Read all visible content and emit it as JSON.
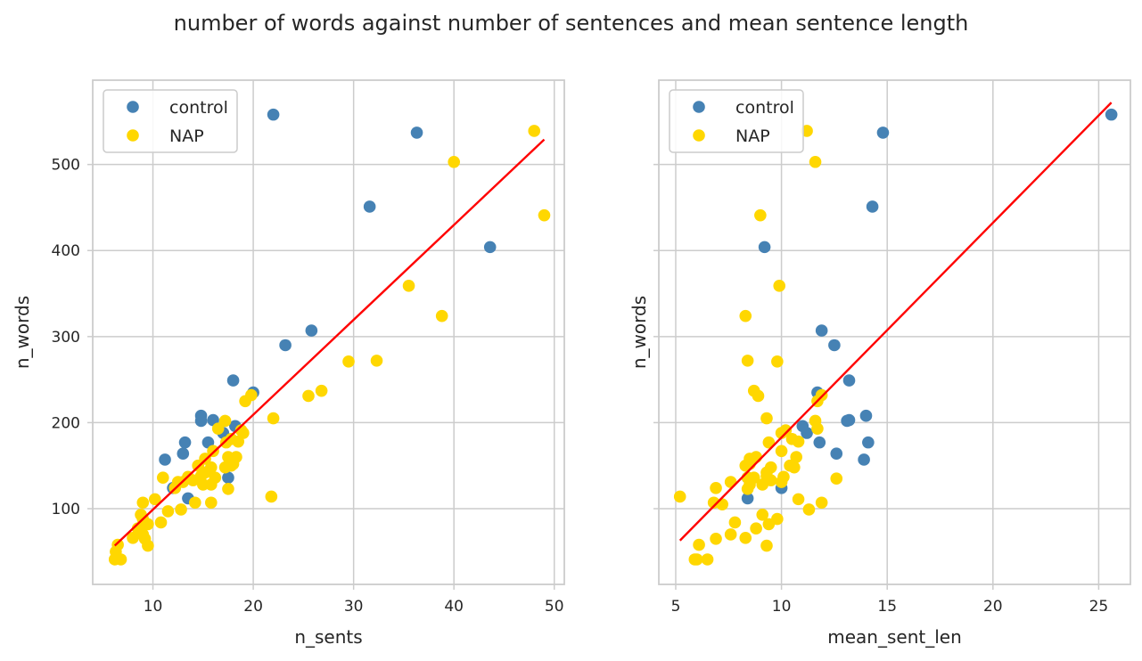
{
  "figure": {
    "title": "number of words against number of sentences and mean sentence length"
  },
  "colors": {
    "control": "#4682b4",
    "NAP": "#ffd700",
    "fit": "#ff0000",
    "grid": "#cccccc",
    "axes": "#cccccc"
  },
  "chart_data": [
    {
      "type": "scatter",
      "title": "",
      "xlabel": "n_sents",
      "ylabel": "n_words",
      "xlim": [
        4,
        51
      ],
      "ylim": [
        12,
        598
      ],
      "xticks": [
        10,
        20,
        30,
        40,
        50
      ],
      "yticks": [
        100,
        200,
        300,
        400,
        500
      ],
      "grid": true,
      "legend": "top-left",
      "series": [
        {
          "name": "control",
          "points": [
            [
              22,
              558
            ],
            [
              36.3,
              537
            ],
            [
              31.6,
              451
            ],
            [
              43.6,
              404
            ],
            [
              25.8,
              307
            ],
            [
              23.2,
              290
            ],
            [
              18,
              249
            ],
            [
              20,
              235
            ],
            [
              14.8,
              208
            ],
            [
              14.8,
              202
            ],
            [
              16,
              203
            ],
            [
              13.2,
              177
            ],
            [
              15.5,
              177
            ],
            [
              17,
              188
            ],
            [
              18.2,
              196
            ],
            [
              13,
              164
            ],
            [
              11.2,
              157
            ],
            [
              12,
              124
            ],
            [
              13.5,
              112
            ],
            [
              17.5,
              136
            ]
          ]
        },
        {
          "name": "NAP",
          "points": [
            [
              48,
              539
            ],
            [
              40,
              503
            ],
            [
              49,
              441
            ],
            [
              35.5,
              359
            ],
            [
              38.8,
              324
            ],
            [
              29.5,
              271
            ],
            [
              32.3,
              272
            ],
            [
              26.8,
              237
            ],
            [
              25.5,
              231
            ],
            [
              19.2,
              225
            ],
            [
              19.8,
              232
            ],
            [
              22,
              205
            ],
            [
              21.8,
              114
            ],
            [
              17.2,
              202
            ],
            [
              16.5,
              193
            ],
            [
              18.8,
              191
            ],
            [
              19,
              188
            ],
            [
              17.8,
              181
            ],
            [
              18.5,
              178
            ],
            [
              17.3,
              177
            ],
            [
              16,
              167
            ],
            [
              15.2,
              158
            ],
            [
              17.5,
              160
            ],
            [
              18.3,
              160
            ],
            [
              17.8,
              150
            ],
            [
              17.2,
              148
            ],
            [
              18,
              152
            ],
            [
              14.5,
              150
            ],
            [
              15.8,
              148
            ],
            [
              15.2,
              142
            ],
            [
              14.8,
              138
            ],
            [
              13.5,
              137
            ],
            [
              16.2,
              136
            ],
            [
              13,
              131
            ],
            [
              14,
              133
            ],
            [
              12.5,
              131
            ],
            [
              15,
              128
            ],
            [
              15.8,
              128
            ],
            [
              17.5,
              123
            ],
            [
              12.2,
              124
            ],
            [
              11,
              136
            ],
            [
              10.2,
              111
            ],
            [
              9,
              107
            ],
            [
              12.8,
              99
            ],
            [
              11.5,
              97
            ],
            [
              14.2,
              107
            ],
            [
              15.8,
              107
            ],
            [
              8.8,
              93
            ],
            [
              9,
              88
            ],
            [
              10.8,
              84
            ],
            [
              9.5,
              82
            ],
            [
              8.5,
              77
            ],
            [
              9,
              70
            ],
            [
              8,
              66
            ],
            [
              9.2,
              65
            ],
            [
              9.5,
              57
            ],
            [
              6.5,
              58
            ],
            [
              6.3,
              50
            ],
            [
              6.2,
              41
            ],
            [
              6.8,
              41
            ]
          ]
        }
      ],
      "fit_line": {
        "x": [
          6.2,
          49
        ],
        "y": [
          57,
          529
        ]
      }
    },
    {
      "type": "scatter",
      "title": "",
      "xlabel": "mean_sent_len",
      "ylabel": "n_words",
      "xlim": [
        4.2,
        26.5
      ],
      "ylim": [
        12,
        598
      ],
      "xticks": [
        5,
        10,
        15,
        20,
        25
      ],
      "yticks": [
        100,
        200,
        300,
        400,
        500
      ],
      "grid": true,
      "legend": "top-left",
      "series": [
        {
          "name": "control",
          "points": [
            [
              25.6,
              558
            ],
            [
              14.8,
              537
            ],
            [
              14.3,
              451
            ],
            [
              9.2,
              404
            ],
            [
              11.9,
              307
            ],
            [
              12.5,
              290
            ],
            [
              13.2,
              249
            ],
            [
              11.7,
              235
            ],
            [
              14,
              208
            ],
            [
              13.1,
              202
            ],
            [
              13.2,
              203
            ],
            [
              14.1,
              177
            ],
            [
              11.8,
              177
            ],
            [
              11.2,
              188
            ],
            [
              11,
              196
            ],
            [
              12.6,
              164
            ],
            [
              13.9,
              157
            ],
            [
              10,
              124
            ],
            [
              8.4,
              112
            ],
            [
              8.4,
              136
            ]
          ]
        },
        {
          "name": "NAP",
          "points": [
            [
              11.2,
              539
            ],
            [
              11.6,
              503
            ],
            [
              9,
              441
            ],
            [
              9.9,
              359
            ],
            [
              8.3,
              324
            ],
            [
              9.8,
              271
            ],
            [
              8.4,
              272
            ],
            [
              8.7,
              237
            ],
            [
              8.9,
              231
            ],
            [
              11.7,
              225
            ],
            [
              11.9,
              232
            ],
            [
              9.3,
              205
            ],
            [
              5.2,
              114
            ],
            [
              11.6,
              202
            ],
            [
              11.7,
              193
            ],
            [
              10.2,
              191
            ],
            [
              10,
              188
            ],
            [
              10.5,
              181
            ],
            [
              10.8,
              178
            ],
            [
              9.4,
              177
            ],
            [
              10,
              167
            ],
            [
              8.5,
              158
            ],
            [
              8.8,
              160
            ],
            [
              10.7,
              160
            ],
            [
              10.4,
              150
            ],
            [
              10.6,
              148
            ],
            [
              8.5,
              152
            ],
            [
              8.3,
              150
            ],
            [
              9.5,
              148
            ],
            [
              9.3,
              142
            ],
            [
              9.3,
              138
            ],
            [
              10.1,
              137
            ],
            [
              8.4,
              136
            ],
            [
              10,
              131
            ],
            [
              9.5,
              133
            ],
            [
              7.6,
              131
            ],
            [
              8.5,
              128
            ],
            [
              9.1,
              128
            ],
            [
              8.4,
              123
            ],
            [
              6.9,
              124
            ],
            [
              8.7,
              136
            ],
            [
              12.6,
              135
            ],
            [
              11.9,
              107
            ],
            [
              7.2,
              105
            ],
            [
              6.8,
              107
            ],
            [
              10.8,
              111
            ],
            [
              11.3,
              99
            ],
            [
              9.1,
              93
            ],
            [
              9.8,
              88
            ],
            [
              7.8,
              84
            ],
            [
              9.4,
              82
            ],
            [
              8.8,
              77
            ],
            [
              7.6,
              70
            ],
            [
              8.3,
              66
            ],
            [
              6.9,
              65
            ],
            [
              9.3,
              57
            ],
            [
              6.1,
              58
            ],
            [
              6,
              41
            ],
            [
              5.9,
              41
            ],
            [
              6.5,
              41
            ]
          ]
        }
      ],
      "fit_line": {
        "x": [
          5.2,
          25.6
        ],
        "y": [
          63,
          572
        ]
      }
    }
  ]
}
